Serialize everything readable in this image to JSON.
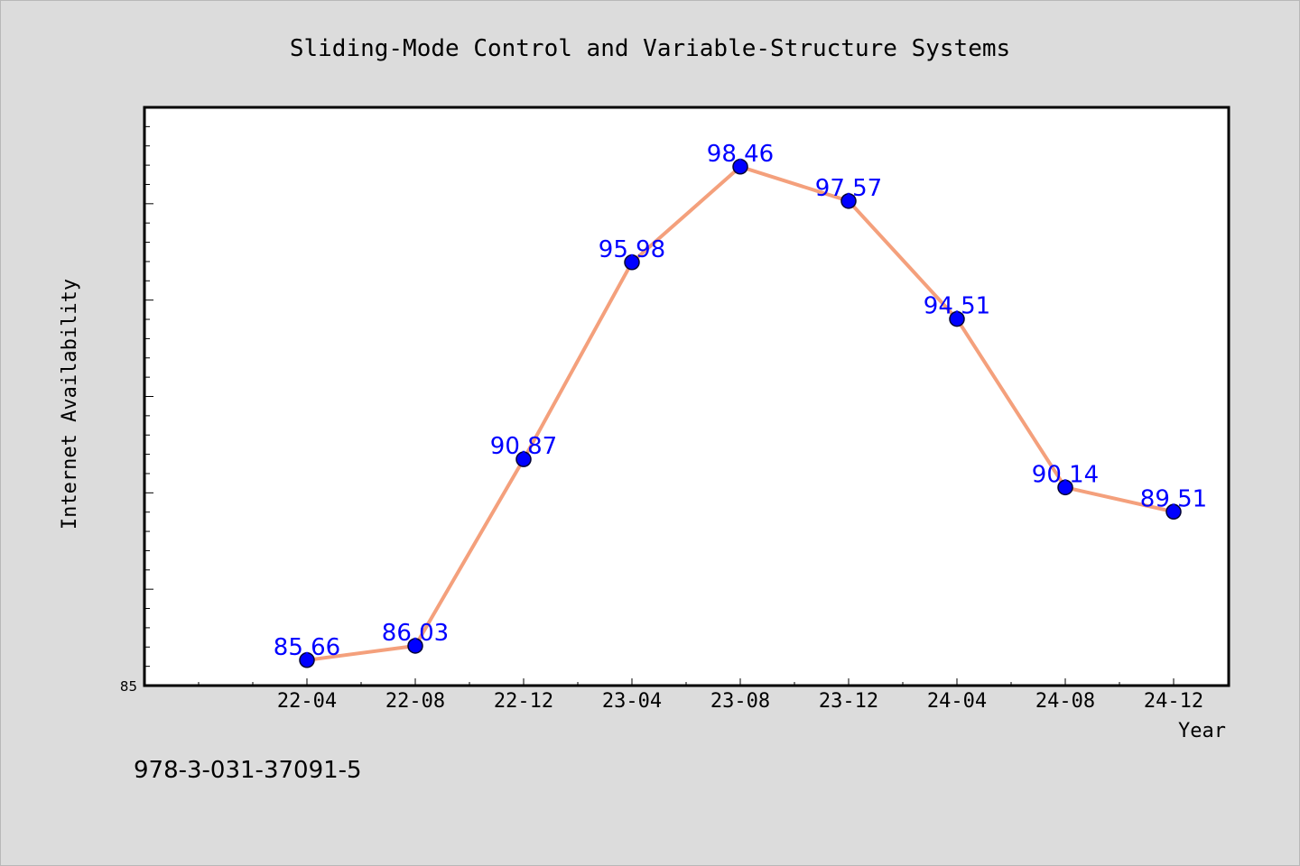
{
  "chart_data": {
    "type": "line",
    "title": "Sliding-Mode Control and Variable-Structure Systems",
    "xlabel": "Year",
    "ylabel": "Internet Availability",
    "categories": [
      "22-04",
      "22-08",
      "22-12",
      "23-04",
      "23-08",
      "23-12",
      "24-04",
      "24-08",
      "24-12"
    ],
    "series": [
      {
        "values": [
          85.66,
          86.03,
          90.87,
          95.98,
          98.46,
          97.57,
          94.51,
          90.14,
          89.51
        ],
        "line_color": "#f4a07c",
        "marker_color": "#0000ff"
      }
    ],
    "ylim": [
      85,
      100
    ],
    "yticks_labeled": [
      "85"
    ],
    "data_labels": [
      "85.66",
      "86.03",
      "90.87",
      "95.98",
      "98.46",
      "97.57",
      "94.51",
      "90.14",
      "89.51"
    ],
    "grid": false,
    "legend": "none"
  },
  "footnote": "978-3-031-37091-5",
  "colors": {
    "background": "#dcdcdc",
    "plot_background": "#ffffff",
    "data_label": "#0000ff"
  }
}
